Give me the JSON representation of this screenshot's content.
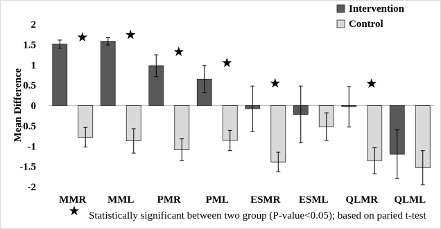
{
  "chart_data": {
    "type": "bar",
    "ylabel": "Mean Difference",
    "ylim": [
      -2,
      2
    ],
    "yticks": [
      "2",
      "1.5",
      "1",
      "0.5",
      "0",
      "-0.5",
      "-1",
      "-1.5",
      "-2"
    ],
    "grid": false,
    "legend_position": "top-right",
    "categories": [
      "MMR",
      "MML",
      "PMR",
      "PML",
      "ESMR",
      "ESML",
      "QLMR",
      "QLML"
    ],
    "series": [
      {
        "name": "Intervention",
        "color": "#595959",
        "values": [
          1.51,
          1.58,
          0.98,
          0.65,
          -0.08,
          -0.22,
          -0.03,
          -1.2
        ],
        "error": [
          0.1,
          0.09,
          0.27,
          0.33,
          0.56,
          0.7,
          0.5,
          0.6
        ]
      },
      {
        "name": "Control",
        "color": "#d9d9d9",
        "values": [
          -0.78,
          -0.87,
          -1.09,
          -0.86,
          -1.39,
          -0.52,
          -1.36,
          -1.53
        ],
        "error": [
          0.24,
          0.3,
          0.27,
          0.25,
          0.24,
          0.34,
          0.32,
          0.42
        ]
      }
    ],
    "significant": [
      true,
      true,
      true,
      true,
      true,
      false,
      true,
      false
    ],
    "star_symbol": "★",
    "footnote": "Statistically significant between two group (P-value<0.05); based on paried t-test"
  }
}
